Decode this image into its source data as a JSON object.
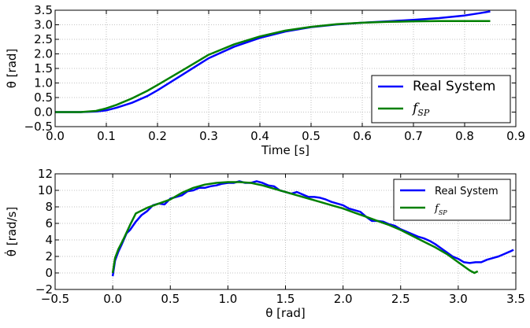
{
  "chart_data": [
    {
      "type": "line",
      "xlabel": "Time [s]",
      "ylabel": "θ [rad]",
      "xlim": [
        0.0,
        0.9
      ],
      "ylim": [
        -0.5,
        3.5
      ],
      "xticks": [
        "0.0",
        "0.1",
        "0.2",
        "0.3",
        "0.4",
        "0.5",
        "0.6",
        "0.7",
        "0.8",
        "0.9"
      ],
      "yticks": [
        "−0.5",
        "0.0",
        "0.5",
        "1.0",
        "1.5",
        "2.0",
        "2.5",
        "3.0",
        "3.5"
      ],
      "grid": true,
      "legend_position": "bottom-right",
      "series": [
        {
          "name": "Real System",
          "color": "#0000ff",
          "x": [
            0.0,
            0.05,
            0.08,
            0.1,
            0.12,
            0.15,
            0.18,
            0.2,
            0.25,
            0.3,
            0.35,
            0.4,
            0.45,
            0.5,
            0.55,
            0.6,
            0.65,
            0.7,
            0.75,
            0.8,
            0.83,
            0.85
          ],
          "y": [
            0.0,
            0.0,
            0.02,
            0.06,
            0.15,
            0.32,
            0.55,
            0.75,
            1.3,
            1.85,
            2.25,
            2.55,
            2.77,
            2.92,
            3.01,
            3.07,
            3.12,
            3.17,
            3.23,
            3.32,
            3.4,
            3.46
          ]
        },
        {
          "name": "f_SP",
          "color": "#008000",
          "x": [
            0.0,
            0.05,
            0.08,
            0.1,
            0.12,
            0.15,
            0.18,
            0.2,
            0.25,
            0.3,
            0.35,
            0.4,
            0.45,
            0.5,
            0.55,
            0.6,
            0.65,
            0.7,
            0.75,
            0.8,
            0.85
          ],
          "y": [
            0.0,
            0.0,
            0.04,
            0.13,
            0.25,
            0.47,
            0.73,
            0.93,
            1.45,
            1.97,
            2.33,
            2.6,
            2.8,
            2.93,
            3.02,
            3.07,
            3.1,
            3.12,
            3.13,
            3.13,
            3.13
          ]
        }
      ]
    },
    {
      "type": "line",
      "xlabel": "θ [rad]",
      "ylabel": "θ̇ [rad/s]",
      "xlim": [
        -0.5,
        3.5
      ],
      "ylim": [
        -2,
        12
      ],
      "xticks": [
        "−0.5",
        "0.0",
        "0.5",
        "1.0",
        "1.5",
        "2.0",
        "2.5",
        "3.0",
        "3.5"
      ],
      "yticks": [
        "−2",
        "0",
        "2",
        "4",
        "6",
        "8",
        "10",
        "12"
      ],
      "grid": true,
      "legend_position": "top-right",
      "series": [
        {
          "name": "Real System",
          "color": "#0000ff",
          "x": [
            0.0,
            0.02,
            0.05,
            0.08,
            0.12,
            0.15,
            0.2,
            0.25,
            0.3,
            0.35,
            0.4,
            0.45,
            0.5,
            0.55,
            0.6,
            0.65,
            0.7,
            0.75,
            0.8,
            0.85,
            0.9,
            0.95,
            1.0,
            1.05,
            1.1,
            1.15,
            1.2,
            1.25,
            1.3,
            1.35,
            1.4,
            1.45,
            1.5,
            1.55,
            1.6,
            1.65,
            1.7,
            1.75,
            1.8,
            1.85,
            1.9,
            1.95,
            2.0,
            2.05,
            2.1,
            2.15,
            2.2,
            2.25,
            2.3,
            2.35,
            2.4,
            2.45,
            2.5,
            2.55,
            2.6,
            2.65,
            2.7,
            2.75,
            2.8,
            2.85,
            2.9,
            2.95,
            3.0,
            3.05,
            3.1,
            3.15,
            3.2,
            3.25,
            3.3,
            3.35,
            3.4,
            3.45,
            3.48
          ],
          "y": [
            -0.4,
            1.5,
            2.6,
            3.5,
            4.8,
            5.2,
            6.2,
            7.0,
            7.5,
            8.2,
            8.4,
            8.3,
            9.0,
            9.2,
            9.4,
            9.9,
            10.0,
            10.3,
            10.3,
            10.5,
            10.6,
            10.8,
            10.9,
            10.9,
            11.1,
            10.9,
            10.9,
            11.1,
            10.9,
            10.6,
            10.5,
            10.0,
            9.8,
            9.6,
            9.8,
            9.5,
            9.2,
            9.2,
            9.1,
            8.9,
            8.6,
            8.4,
            8.2,
            7.8,
            7.6,
            7.4,
            6.8,
            6.3,
            6.3,
            6.2,
            5.9,
            5.7,
            5.3,
            5.0,
            4.7,
            4.4,
            4.2,
            3.9,
            3.5,
            3.0,
            2.5,
            2.0,
            1.7,
            1.3,
            1.2,
            1.3,
            1.3,
            1.6,
            1.8,
            2.0,
            2.3,
            2.6,
            2.8
          ]
        },
        {
          "name": "f_SP",
          "color": "#008000",
          "x": [
            0.0,
            0.02,
            0.05,
            0.08,
            0.1,
            0.15,
            0.2,
            0.3,
            0.4,
            0.5,
            0.6,
            0.7,
            0.8,
            0.9,
            1.0,
            1.1,
            1.2,
            1.3,
            1.4,
            1.5,
            1.6,
            1.7,
            1.8,
            1.9,
            2.0,
            2.1,
            2.2,
            2.3,
            2.4,
            2.5,
            2.6,
            2.7,
            2.8,
            2.9,
            3.0,
            3.05,
            3.1,
            3.14,
            3.17
          ],
          "y": [
            0.0,
            1.8,
            2.9,
            3.7,
            4.3,
            5.8,
            7.2,
            7.9,
            8.4,
            8.9,
            9.7,
            10.3,
            10.7,
            10.9,
            11.0,
            11.0,
            10.9,
            10.6,
            10.2,
            9.8,
            9.4,
            9.0,
            8.6,
            8.2,
            7.8,
            7.3,
            6.8,
            6.3,
            5.8,
            5.2,
            4.5,
            3.8,
            3.1,
            2.3,
            1.3,
            0.8,
            0.3,
            0.0,
            0.2
          ]
        }
      ]
    }
  ]
}
